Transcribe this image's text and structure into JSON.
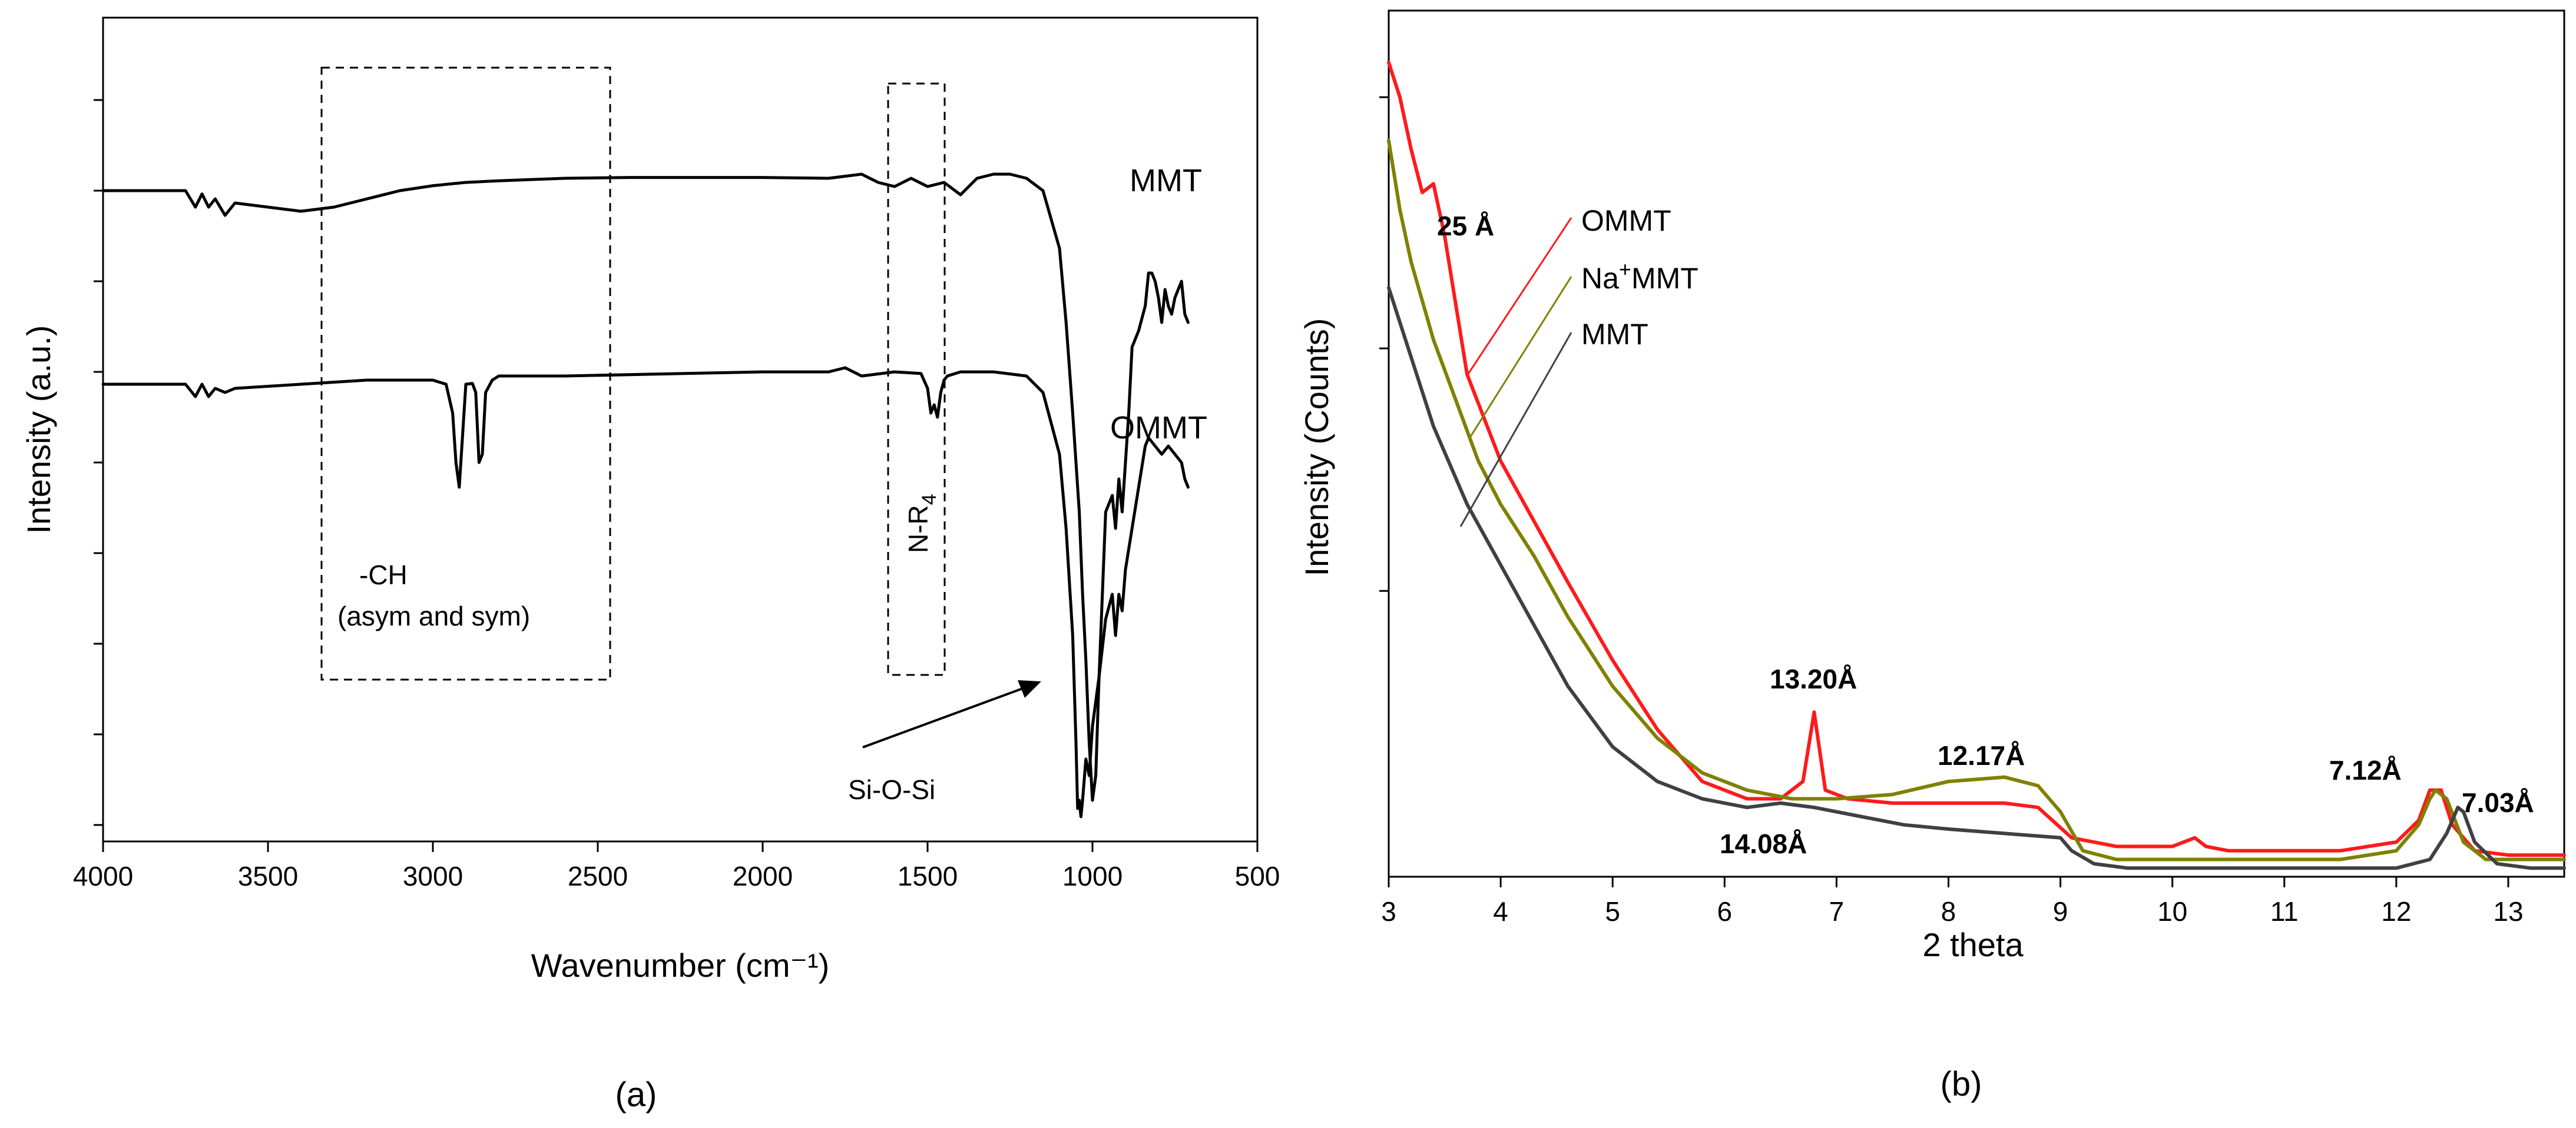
{
  "figure_labels": {
    "a": "(a)",
    "b": "(b)"
  },
  "colors": {
    "ommt": "#ff1a1a",
    "namt": "#808000",
    "mmt": "#404040",
    "ftir": "#000000"
  },
  "chart_data": [
    {
      "id": "a",
      "type": "line",
      "title": "",
      "xlabel": "Wavenumber (cm⁻¹)",
      "ylabel": "Intensity (a.u.)",
      "xlim": [
        4000,
        500
      ],
      "ylim": [
        0,
        1
      ],
      "x_ticks": [
        4000,
        3500,
        3000,
        2500,
        2000,
        1500,
        1000,
        500
      ],
      "x_tick_labels": [
        "4000",
        "3500",
        "3000",
        "2500",
        "2000",
        "1500",
        "1000",
        "500"
      ],
      "y_ticks": [
        0.02,
        0.13,
        0.24,
        0.35,
        0.46,
        0.57,
        0.68,
        0.79,
        0.9
      ],
      "series": [
        {
          "name": "MMT",
          "x": [
            4000,
            3750,
            3720,
            3700,
            3680,
            3660,
            3630,
            3600,
            3500,
            3400,
            3300,
            3200,
            3100,
            3000,
            2900,
            2800,
            2600,
            2400,
            2000,
            1800,
            1700,
            1650,
            1600,
            1550,
            1500,
            1450,
            1400,
            1350,
            1300,
            1250,
            1200,
            1150,
            1100,
            1080,
            1060,
            1040,
            1030,
            1020,
            1010,
            1000,
            990,
            980,
            960,
            940,
            930,
            920,
            910,
            900,
            890,
            880,
            860,
            840,
            830,
            820,
            810,
            800,
            790,
            780,
            770,
            760,
            750,
            740,
            730,
            720,
            710
          ],
          "y": [
            0.79,
            0.79,
            0.77,
            0.786,
            0.77,
            0.78,
            0.76,
            0.775,
            0.77,
            0.765,
            0.77,
            0.78,
            0.79,
            0.796,
            0.8,
            0.802,
            0.805,
            0.806,
            0.806,
            0.805,
            0.81,
            0.8,
            0.795,
            0.805,
            0.795,
            0.8,
            0.785,
            0.805,
            0.81,
            0.81,
            0.805,
            0.79,
            0.72,
            0.63,
            0.52,
            0.4,
            0.3,
            0.22,
            0.12,
            0.05,
            0.08,
            0.2,
            0.4,
            0.42,
            0.38,
            0.44,
            0.4,
            0.46,
            0.52,
            0.6,
            0.62,
            0.65,
            0.69,
            0.69,
            0.68,
            0.66,
            0.63,
            0.67,
            0.65,
            0.64,
            0.66,
            0.67,
            0.68,
            0.64,
            0.63
          ]
        },
        {
          "name": "OMMT",
          "x": [
            4000,
            3750,
            3720,
            3700,
            3680,
            3660,
            3630,
            3600,
            3400,
            3200,
            3000,
            2960,
            2940,
            2930,
            2920,
            2900,
            2880,
            2870,
            2860,
            2850,
            2840,
            2820,
            2800,
            2600,
            2000,
            1800,
            1750,
            1700,
            1600,
            1520,
            1500,
            1490,
            1480,
            1470,
            1460,
            1450,
            1440,
            1400,
            1300,
            1200,
            1150,
            1100,
            1080,
            1060,
            1050,
            1045,
            1040,
            1035,
            1030,
            1020,
            1010,
            1000,
            980,
            960,
            940,
            930,
            920,
            910,
            900,
            880,
            860,
            840,
            830,
            810,
            790,
            770,
            750,
            730,
            720,
            710
          ],
          "y": [
            0.555,
            0.555,
            0.54,
            0.555,
            0.54,
            0.55,
            0.545,
            0.55,
            0.555,
            0.56,
            0.56,
            0.555,
            0.52,
            0.46,
            0.43,
            0.555,
            0.556,
            0.545,
            0.46,
            0.47,
            0.545,
            0.56,
            0.565,
            0.565,
            0.57,
            0.57,
            0.575,
            0.565,
            0.57,
            0.568,
            0.55,
            0.52,
            0.53,
            0.515,
            0.545,
            0.56,
            0.565,
            0.57,
            0.57,
            0.565,
            0.545,
            0.47,
            0.38,
            0.25,
            0.12,
            0.04,
            0.05,
            0.03,
            0.05,
            0.1,
            0.08,
            0.14,
            0.2,
            0.27,
            0.3,
            0.25,
            0.3,
            0.28,
            0.33,
            0.38,
            0.43,
            0.48,
            0.49,
            0.48,
            0.47,
            0.48,
            0.47,
            0.46,
            0.44,
            0.43
          ]
        }
      ],
      "series_labels": [
        "MMT",
        "OMMT"
      ],
      "annotations": {
        "ch_line1": "-CH",
        "ch_line2": "(asym and sym)",
        "nr4_main": "N-R",
        "nr4_sub": "4",
        "siosi": "Si-O-Si"
      }
    },
    {
      "id": "b",
      "type": "line",
      "title": "",
      "xlabel": "2 theta",
      "ylabel": "Intensity (Counts)",
      "xlim": [
        3,
        13.5
      ],
      "ylim": [
        0,
        1
      ],
      "x_ticks": [
        3,
        4,
        5,
        6,
        7,
        8,
        9,
        10,
        11,
        12,
        13
      ],
      "x_tick_labels": [
        "3",
        "4",
        "5",
        "6",
        "7",
        "8",
        "9",
        "10",
        "11",
        "12",
        "13"
      ],
      "y_ticks": [
        0.33,
        0.61,
        0.9
      ],
      "legend": {
        "placement": "top-left",
        "entries": [
          "OMMT",
          "Na⁺MMT",
          "MMT"
        ]
      },
      "legend_parts": {
        "na_prefix": "Na",
        "na_sup": "+",
        "na_suffix": "MMT"
      },
      "series": [
        {
          "name": "OMMT",
          "x": [
            3,
            3.1,
            3.2,
            3.3,
            3.4,
            3.5,
            3.7,
            4,
            4.3,
            4.6,
            5,
            5.4,
            5.8,
            6.2,
            6.5,
            6.7,
            6.8,
            6.9,
            7.1,
            7.5,
            8,
            8.5,
            8.8,
            9.1,
            9.5,
            10,
            10.2,
            10.3,
            10.5,
            11,
            11.5,
            12,
            12.2,
            12.3,
            12.4,
            12.5,
            12.7,
            13,
            13.5
          ],
          "y": [
            0.94,
            0.9,
            0.84,
            0.79,
            0.8,
            0.74,
            0.58,
            0.48,
            0.41,
            0.34,
            0.25,
            0.17,
            0.11,
            0.09,
            0.09,
            0.11,
            0.19,
            0.1,
            0.09,
            0.085,
            0.085,
            0.085,
            0.08,
            0.045,
            0.035,
            0.035,
            0.045,
            0.035,
            0.03,
            0.03,
            0.03,
            0.04,
            0.065,
            0.1,
            0.1,
            0.06,
            0.03,
            0.025,
            0.025
          ]
        },
        {
          "name": "Na⁺MMT",
          "x": [
            3,
            3.1,
            3.2,
            3.4,
            3.6,
            3.8,
            4,
            4.3,
            4.6,
            5,
            5.4,
            5.8,
            6.2,
            6.6,
            7,
            7.5,
            8,
            8.5,
            8.8,
            9,
            9.2,
            9.5,
            10,
            10.5,
            11,
            11.5,
            12,
            12.2,
            12.3,
            12.35,
            12.45,
            12.6,
            12.8,
            13.2,
            13.5
          ],
          "y": [
            0.85,
            0.77,
            0.71,
            0.62,
            0.55,
            0.48,
            0.43,
            0.37,
            0.3,
            0.22,
            0.16,
            0.12,
            0.1,
            0.09,
            0.09,
            0.095,
            0.11,
            0.115,
            0.105,
            0.075,
            0.03,
            0.02,
            0.02,
            0.02,
            0.02,
            0.02,
            0.03,
            0.06,
            0.09,
            0.1,
            0.09,
            0.04,
            0.02,
            0.02,
            0.02
          ]
        },
        {
          "name": "MMT",
          "x": [
            3,
            3.2,
            3.4,
            3.7,
            4,
            4.3,
            4.6,
            5,
            5.4,
            5.8,
            6.2,
            6.5,
            6.8,
            7.2,
            7.6,
            8,
            8.5,
            9,
            9.1,
            9.3,
            9.6,
            10,
            11,
            12,
            12.3,
            12.45,
            12.55,
            12.6,
            12.7,
            12.9,
            13.2,
            13.5
          ],
          "y": [
            0.68,
            0.6,
            0.52,
            0.43,
            0.36,
            0.29,
            0.22,
            0.15,
            0.11,
            0.09,
            0.08,
            0.085,
            0.08,
            0.07,
            0.06,
            0.055,
            0.05,
            0.045,
            0.03,
            0.015,
            0.01,
            0.01,
            0.01,
            0.01,
            0.02,
            0.05,
            0.08,
            0.075,
            0.04,
            0.015,
            0.01,
            0.01
          ]
        }
      ],
      "peak_labels": {
        "p25": "25 Å",
        "p1320": "13.20Å",
        "p1217": "12.17Å",
        "p1408": "14.08Å",
        "p712": "7.12Å",
        "p703": "7.03Å"
      }
    }
  ]
}
